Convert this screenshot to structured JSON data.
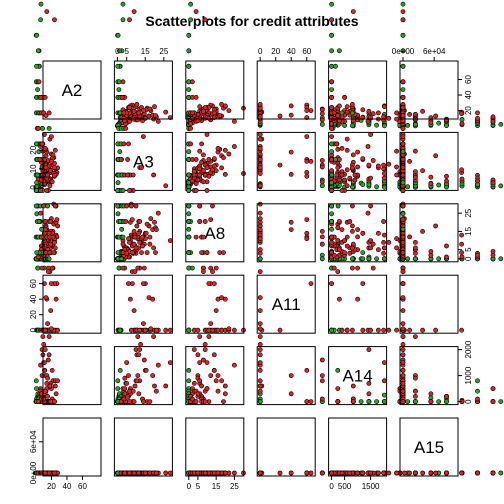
{
  "chart_data": {
    "type": "scatter",
    "title": "Scatterplots for credit attributes",
    "variables": [
      "A2",
      "A3",
      "A8",
      "A11",
      "A14",
      "A15"
    ],
    "ranges": {
      "A2": [
        13,
        80
      ],
      "A3": [
        0,
        28
      ],
      "A8": [
        0,
        28.5
      ],
      "A11": [
        0,
        67
      ],
      "A14": [
        0,
        2000
      ],
      "A15": [
        0,
        100000
      ]
    },
    "tick_labels": {
      "A2": {
        "positions": [
          20,
          40,
          60
        ],
        "labels": [
          "20",
          "40",
          "60"
        ]
      },
      "A3": {
        "positions": [
          0,
          10,
          20
        ],
        "labels": [
          "0",
          "10",
          "20"
        ],
        "top_positions": [
          0,
          5,
          15,
          25
        ],
        "top_labels": [
          "0",
          "5",
          "15",
          "25"
        ]
      },
      "A8": {
        "positions": [
          0,
          5,
          15,
          25
        ],
        "labels": [
          "0",
          "5",
          "15",
          "25"
        ]
      },
      "A11": {
        "positions": [
          0,
          20,
          40,
          60
        ],
        "labels": [
          "0",
          "20",
          "40",
          "60"
        ]
      },
      "A14": {
        "positions": [
          0,
          500,
          1500
        ],
        "labels": [
          "0",
          "500",
          "1500"
        ],
        "right_positions": [
          0,
          1000,
          2000
        ],
        "right_labels": [
          "0",
          "1000",
          "2000"
        ]
      },
      "A15": {
        "positions": [
          0,
          60000
        ],
        "labels": [
          "0e+00",
          "6e+04"
        ]
      }
    },
    "classes": [
      {
        "name": "",
        "color": "#2ca02c"
      },
      {
        "name": "",
        "color": "#d62728"
      }
    ],
    "points": [
      [
        28,
        1.2,
        0.1,
        0,
        200,
        0,
        0
      ],
      [
        22,
        11.5,
        1.5,
        0,
        100,
        1200,
        0
      ],
      [
        24,
        0.5,
        0.2,
        0,
        280,
        800,
        0
      ],
      [
        27,
        1.5,
        0.5,
        0,
        320,
        0,
        0
      ],
      [
        20,
        5.6,
        2.0,
        0,
        120,
        0,
        0
      ],
      [
        32,
        4.0,
        2.5,
        0,
        360,
        300,
        0
      ],
      [
        21,
        0.3,
        0.1,
        0,
        180,
        0,
        0
      ],
      [
        23,
        2.5,
        0.9,
        0,
        220,
        150,
        0
      ],
      [
        25,
        1.0,
        0.3,
        0,
        0,
        0,
        0
      ],
      [
        26,
        3.0,
        1.0,
        0,
        260,
        0,
        0
      ],
      [
        19,
        0.8,
        0.2,
        0,
        300,
        500,
        0
      ],
      [
        30,
        6.0,
        3.0,
        1,
        400,
        0,
        0
      ],
      [
        34,
        5.0,
        2.0,
        0,
        140,
        0,
        0
      ],
      [
        22,
        1.8,
        0.6,
        0,
        160,
        0,
        0
      ],
      [
        29,
        2.2,
        0.8,
        0,
        240,
        200,
        0
      ],
      [
        24,
        4.5,
        1.5,
        0,
        340,
        0,
        0
      ],
      [
        36,
        7.5,
        2.5,
        1,
        100,
        0,
        0
      ],
      [
        27,
        0.6,
        0.1,
        0,
        200,
        0,
        0
      ],
      [
        31,
        1.4,
        0.5,
        0,
        0,
        100,
        0
      ],
      [
        18,
        0.2,
        0.0,
        0,
        120,
        0,
        0
      ],
      [
        40,
        8.0,
        3.5,
        0,
        280,
        400,
        0
      ],
      [
        25,
        3.5,
        1.2,
        0,
        180,
        0,
        0
      ],
      [
        23,
        0.9,
        0.2,
        0,
        220,
        0,
        0
      ],
      [
        38,
        10.5,
        4.0,
        2,
        80,
        0,
        0
      ],
      [
        21,
        1.1,
        0.4,
        0,
        300,
        0,
        0
      ],
      [
        33,
        2.8,
        1.0,
        0,
        160,
        250,
        0
      ],
      [
        28,
        0.4,
        0.1,
        0,
        380,
        0,
        0
      ],
      [
        45,
        9.0,
        2.0,
        0,
        0,
        0,
        0
      ],
      [
        26,
        5.5,
        2.5,
        0,
        140,
        0,
        0
      ],
      [
        30,
        1.6,
        0.7,
        0,
        260,
        50,
        0
      ],
      [
        20,
        2.0,
        0.5,
        0,
        120,
        0,
        0
      ],
      [
        35,
        3.2,
        1.4,
        0,
        200,
        0,
        0
      ],
      [
        24,
        0.7,
        0.3,
        0,
        240,
        100,
        0
      ],
      [
        42,
        6.5,
        3.0,
        1,
        420,
        0,
        0
      ],
      [
        27,
        4.2,
        1.6,
        0,
        100,
        0,
        0
      ],
      [
        22,
        0.5,
        0.2,
        0,
        320,
        0,
        0
      ],
      [
        50,
        7.0,
        2.0,
        0,
        300,
        0,
        0
      ],
      [
        29,
        1.3,
        0.5,
        0,
        180,
        0,
        0
      ],
      [
        31,
        2.6,
        1.0,
        0,
        0,
        300,
        0
      ],
      [
        25,
        6.8,
        2.2,
        0,
        220,
        0,
        0
      ],
      [
        19,
        1.5,
        0.4,
        0,
        160,
        0,
        0
      ],
      [
        37,
        4.8,
        1.8,
        0,
        280,
        0,
        0
      ],
      [
        23,
        3.8,
        1.3,
        0,
        340,
        150,
        0
      ],
      [
        55,
        5.5,
        2.5,
        0,
        120,
        0,
        0
      ],
      [
        28,
        0.3,
        0.1,
        0,
        200,
        0,
        0
      ],
      [
        33,
        8.5,
        3.2,
        0,
        260,
        0,
        0
      ],
      [
        21,
        2.3,
        0.9,
        0,
        80,
        0,
        0
      ],
      [
        44,
        3.0,
        1.1,
        0,
        360,
        0,
        0
      ],
      [
        26,
        1.7,
        0.6,
        0,
        140,
        0,
        0
      ],
      [
        39,
        5.2,
        2.0,
        0,
        240,
        200,
        0
      ],
      [
        60,
        4.0,
        1.5,
        0,
        0,
        0,
        0
      ],
      [
        24,
        9.5,
        2.8,
        0,
        300,
        0,
        0
      ],
      [
        30,
        0.8,
        0.2,
        0,
        180,
        0,
        0
      ],
      [
        35,
        12.0,
        3.0,
        0,
        100,
        0,
        0
      ],
      [
        27,
        2.1,
        0.8,
        0,
        220,
        0,
        0
      ],
      [
        48,
        6.0,
        2.5,
        0,
        160,
        0,
        0
      ],
      [
        22,
        3.3,
        1.2,
        0,
        280,
        0,
        0
      ],
      [
        32,
        1.0,
        0.4,
        0,
        380,
        0,
        0
      ],
      [
        65,
        3.5,
        1.0,
        0,
        120,
        100,
        0
      ],
      [
        29,
        7.8,
        2.4,
        0,
        200,
        0,
        0
      ],
      [
        34,
        0.6,
        0.2,
        0,
        240,
        0,
        0
      ],
      [
        41,
        4.4,
        1.7,
        1,
        140,
        0,
        0
      ],
      [
        25,
        2.7,
        1.0,
        0,
        320,
        0,
        0
      ],
      [
        52,
        8.2,
        2.0,
        0,
        260,
        0,
        0
      ],
      [
        20,
        1.2,
        0.3,
        0,
        100,
        0,
        0
      ],
      [
        36,
        5.8,
        2.2,
        0,
        180,
        0,
        0
      ],
      [
        28,
        3.6,
        1.4,
        0,
        0,
        0,
        0
      ],
      [
        70,
        2.0,
        0.8,
        0,
        200,
        0,
        0
      ],
      [
        31,
        10.0,
        3.5,
        0,
        300,
        0,
        0
      ],
      [
        23,
        0.4,
        0.1,
        0,
        160,
        0,
        0
      ],
      [
        46,
        11.0,
        2.5,
        0,
        120,
        0,
        0
      ],
      [
        26,
        6.2,
        2.0,
        0,
        440,
        0,
        0
      ],
      [
        38,
        1.9,
        0.7,
        0,
        220,
        0,
        0
      ],
      [
        57,
        5.0,
        1.5,
        0,
        280,
        0,
        0
      ],
      [
        21,
        4.0,
        1.5,
        0,
        140,
        0,
        0
      ],
      [
        33,
        0.7,
        0.2,
        0,
        340,
        0,
        0
      ],
      [
        43,
        13.5,
        3.0,
        0,
        200,
        0,
        0
      ],
      [
        27,
        2.4,
        0.9,
        0,
        80,
        0,
        0
      ],
      [
        62,
        6.8,
        2.0,
        0,
        240,
        0,
        0
      ],
      [
        30,
        8.8,
        3.0,
        0,
        180,
        0,
        0
      ],
      [
        40,
        14.0,
        3.0,
        0,
        120,
        0,
        0
      ],
      [
        54,
        12.5,
        2.5,
        0,
        100,
        0,
        0
      ],
      [
        49,
        15.0,
        3.5,
        0,
        160,
        0,
        0
      ],
      [
        58,
        16.5,
        3.5,
        0,
        140,
        0,
        0
      ],
      [
        45,
        4.8,
        1.5,
        0,
        300,
        0,
        0
      ],
      [
        66,
        9.5,
        2.5,
        0,
        200,
        0,
        0
      ],
      [
        24,
        17.0,
        3.5,
        0,
        260,
        0,
        0
      ],
      [
        35,
        2.6,
        1.0,
        0,
        500,
        0,
        0
      ],
      [
        22,
        6.5,
        1.8,
        0,
        540,
        0,
        0
      ],
      [
        19,
        1.8,
        0.5,
        0,
        620,
        0,
        0
      ],
      [
        26,
        3.1,
        1.2,
        0,
        580,
        0,
        0
      ],
      [
        31,
        0.2,
        0.1,
        0,
        700,
        0,
        0
      ],
      [
        28,
        5.1,
        1.9,
        0,
        480,
        0,
        0
      ],
      [
        42,
        1.0,
        0.4,
        0,
        760,
        0,
        0
      ],
      [
        23,
        2.9,
        1.1,
        0,
        460,
        0,
        0
      ],
      [
        29,
        1.1,
        0.3,
        0,
        150,
        0,
        0
      ],
      [
        24,
        3.7,
        1.3,
        0,
        230,
        0,
        0
      ],
      [
        37,
        2.2,
        0.8,
        0,
        310,
        0,
        0
      ],
      [
        21,
        0.9,
        0.3,
        0,
        190,
        0,
        0
      ],
      [
        47,
        7.3,
        2.3,
        0,
        130,
        0,
        0
      ],
      [
        32,
        20,
        3.0,
        10,
        100,
        500,
        1
      ],
      [
        38,
        12,
        6.0,
        5,
        200,
        1000,
        1
      ],
      [
        45,
        8,
        10.0,
        3,
        0,
        2000,
        1
      ],
      [
        52,
        18,
        8.0,
        8,
        100,
        5000,
        1
      ],
      [
        29,
        6,
        4.0,
        2,
        300,
        500,
        1
      ],
      [
        60,
        15,
        14.0,
        12,
        0,
        3000,
        1
      ],
      [
        35,
        10,
        5.0,
        6,
        160,
        1500,
        1
      ],
      [
        41,
        22,
        12.0,
        15,
        80,
        800,
        1
      ],
      [
        48,
        14,
        9.0,
        4,
        120,
        15000,
        1
      ],
      [
        33,
        9,
        3.5,
        7,
        240,
        200,
        1
      ],
      [
        56,
        25,
        20.0,
        20,
        0,
        600,
        1
      ],
      [
        27,
        13,
        7.0,
        9,
        200,
        400,
        1
      ],
      [
        44,
        17,
        11.0,
        11,
        0,
        2500,
        1
      ],
      [
        39,
        7,
        6.5,
        1,
        280,
        0,
        1
      ],
      [
        62,
        11,
        15.0,
        14,
        60,
        1200,
        1
      ],
      [
        30,
        19,
        4.5,
        6,
        140,
        700,
        1
      ],
      [
        50,
        24,
        13.0,
        10,
        100,
        9000,
        1
      ],
      [
        36,
        16,
        8.5,
        3,
        180,
        0,
        1
      ],
      [
        68,
        13,
        17.0,
        18,
        0,
        4000,
        1
      ],
      [
        42,
        5,
        5.5,
        2,
        220,
        300,
        1
      ],
      [
        25,
        21,
        3.0,
        8,
        80,
        100,
        1
      ],
      [
        58,
        9,
        10.5,
        5,
        0,
        1800,
        1
      ],
      [
        47,
        26,
        7.5,
        13,
        160,
        50000,
        1
      ],
      [
        34,
        12,
        2.5,
        4,
        300,
        0,
        1
      ],
      [
        53,
        14,
        19.0,
        16,
        40,
        1000,
        1
      ],
      [
        40,
        18,
        9.5,
        7,
        120,
        600,
        1
      ],
      [
        31,
        8,
        6.0,
        1,
        240,
        200,
        1
      ],
      [
        64,
        10,
        12.5,
        9,
        0,
        2200,
        1
      ],
      [
        46,
        23,
        16.0,
        19,
        100,
        0,
        1
      ],
      [
        37,
        15,
        4.0,
        5,
        200,
        900,
        1
      ],
      [
        55,
        6,
        22.0,
        25,
        0,
        1400,
        1
      ],
      [
        28,
        17,
        5.0,
        3,
        280,
        0,
        1
      ],
      [
        43,
        27,
        8.0,
        12,
        60,
        7000,
        1
      ],
      [
        61,
        12,
        11.5,
        6,
        140,
        300,
        1
      ],
      [
        35,
        4,
        3.0,
        2,
        320,
        0,
        1
      ],
      [
        49,
        20,
        18.0,
        22,
        0,
        2800,
        1
      ],
      [
        32,
        14,
        7.0,
        10,
        180,
        500,
        1
      ],
      [
        57,
        16,
        14.5,
        8,
        80,
        1600,
        1
      ],
      [
        38,
        11,
        2.0,
        4,
        220,
        0,
        1
      ],
      [
        65,
        19,
        9.0,
        15,
        0,
        3500,
        1
      ],
      [
        44,
        7,
        13.5,
        7,
        120,
        100,
        1
      ],
      [
        26,
        24,
        6.0,
        11,
        60,
        0,
        1
      ],
      [
        51,
        13,
        20.5,
        17,
        100,
        11000,
        1
      ],
      [
        36,
        25,
        10.0,
        6,
        160,
        800,
        1
      ],
      [
        59,
        9,
        8.5,
        3,
        200,
        400,
        1
      ],
      [
        41,
        21,
        15.5,
        14,
        0,
        1200,
        1
      ],
      [
        30,
        3,
        4.5,
        1,
        260,
        0,
        1
      ],
      [
        54,
        18,
        26.0,
        40,
        0,
        600,
        1
      ],
      [
        47,
        12,
        12.0,
        9,
        140,
        2000,
        1
      ],
      [
        39,
        26,
        7.0,
        20,
        40,
        300,
        1
      ],
      [
        34,
        15,
        5.5,
        5,
        200,
        200,
        1
      ],
      [
        63,
        8,
        11.0,
        12,
        80,
        1000,
        1
      ],
      [
        45,
        22,
        17.5,
        8,
        120,
        0,
        1
      ],
      [
        29,
        10,
        3.5,
        2,
        280,
        100,
        1
      ],
      [
        52,
        16,
        9.5,
        13,
        0,
        5000,
        1
      ],
      [
        37,
        20,
        14.0,
        67,
        60,
        0,
        1
      ],
      [
        43,
        11,
        28.5,
        10,
        0,
        1500,
        1
      ],
      [
        56,
        6,
        6.5,
        4,
        180,
        400,
        1
      ],
      [
        33,
        18,
        8.0,
        7,
        100,
        0,
        1
      ],
      [
        48,
        28,
        10.5,
        18,
        0,
        800,
        1
      ],
      [
        40,
        13,
        12.0,
        50,
        0,
        20000,
        1
      ],
      [
        31,
        9,
        19.5,
        6,
        200,
        2500,
        1
      ],
      [
        58,
        23,
        7.5,
        30,
        0,
        100000,
        1
      ],
      [
        35,
        14,
        5.0,
        3,
        1000,
        700,
        1
      ],
      [
        46,
        10,
        15.0,
        11,
        0,
        30000,
        1
      ],
      [
        42,
        19,
        9.0,
        8,
        2000,
        0,
        1
      ],
      [
        27,
        7,
        4.0,
        5,
        1300,
        300,
        1
      ],
      [
        53,
        17,
        11.5,
        14,
        600,
        1800,
        1
      ],
      [
        61,
        12,
        21.0,
        16,
        0,
        400,
        1
      ],
      [
        38,
        24,
        6.5,
        9,
        400,
        0,
        1
      ]
    ]
  }
}
